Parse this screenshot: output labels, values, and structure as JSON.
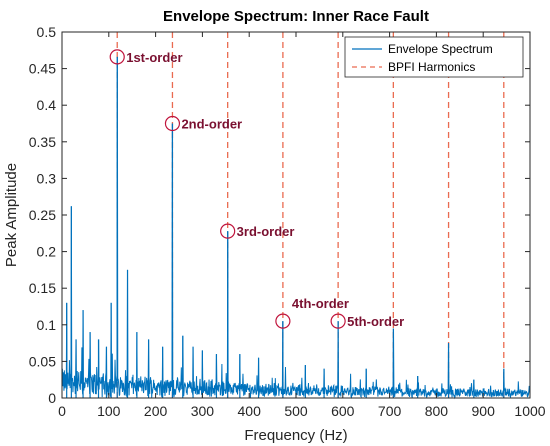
{
  "chart_data": {
    "type": "line",
    "title": "Envelope Spectrum: Inner Race Fault",
    "xlabel": "Frequency (Hz)",
    "ylabel": "Peak Amplitude",
    "xlim": [
      0,
      1000
    ],
    "ylim": [
      0,
      0.5
    ],
    "x_ticks": [
      0,
      100,
      200,
      300,
      400,
      500,
      600,
      700,
      800,
      900,
      1000
    ],
    "x_tick_labels": [
      "0",
      "100",
      "200",
      "300",
      "400",
      "500",
      "600",
      "700",
      "800",
      "900",
      "1000"
    ],
    "y_ticks": [
      0,
      0.05,
      0.1,
      0.15,
      0.2,
      0.25,
      0.3,
      0.35,
      0.4,
      0.45,
      0.5
    ],
    "y_tick_labels": [
      "0",
      "0.05",
      "0.1",
      "0.15",
      "0.2",
      "0.25",
      "0.3",
      "0.35",
      "0.4",
      "0.45",
      "0.5"
    ],
    "grid": false,
    "legend_position": "top-right",
    "colors": {
      "spectrum": "#0072bd",
      "harmonics": "#ea6b50",
      "annotation": "#c0143c",
      "annotation_text": "#7a1030"
    },
    "series": [
      {
        "name": "Envelope Spectrum",
        "style": "solid",
        "peaks": [
          {
            "x": 20,
            "y": 0.262
          },
          {
            "x": 10,
            "y": 0.13
          },
          {
            "x": 30,
            "y": 0.08
          },
          {
            "x": 45,
            "y": 0.12
          },
          {
            "x": 60,
            "y": 0.09
          },
          {
            "x": 78,
            "y": 0.08
          },
          {
            "x": 95,
            "y": 0.07
          },
          {
            "x": 105,
            "y": 0.13
          },
          {
            "x": 118,
            "y": 0.466
          },
          {
            "x": 140,
            "y": 0.175
          },
          {
            "x": 160,
            "y": 0.09
          },
          {
            "x": 185,
            "y": 0.08
          },
          {
            "x": 215,
            "y": 0.07
          },
          {
            "x": 236,
            "y": 0.375
          },
          {
            "x": 258,
            "y": 0.085
          },
          {
            "x": 280,
            "y": 0.07
          },
          {
            "x": 300,
            "y": 0.065
          },
          {
            "x": 330,
            "y": 0.06
          },
          {
            "x": 354,
            "y": 0.228
          },
          {
            "x": 380,
            "y": 0.06
          },
          {
            "x": 420,
            "y": 0.055
          },
          {
            "x": 472,
            "y": 0.105
          },
          {
            "x": 520,
            "y": 0.045
          },
          {
            "x": 560,
            "y": 0.04
          },
          {
            "x": 590,
            "y": 0.105
          },
          {
            "x": 650,
            "y": 0.04
          },
          {
            "x": 708,
            "y": 0.095
          },
          {
            "x": 760,
            "y": 0.03
          },
          {
            "x": 826,
            "y": 0.075
          },
          {
            "x": 880,
            "y": 0.025
          },
          {
            "x": 944,
            "y": 0.04
          }
        ]
      },
      {
        "name": "BPFI Harmonics",
        "style": "dashed",
        "x": [
          118,
          236,
          354,
          472,
          590,
          708,
          826,
          944
        ]
      }
    ],
    "annotations": [
      {
        "label": "1st-order",
        "x": 118,
        "y": 0.466
      },
      {
        "label": "2nd-order",
        "x": 236,
        "y": 0.375
      },
      {
        "label": "3rd-order",
        "x": 354,
        "y": 0.228
      },
      {
        "label": "4th-order",
        "x": 472,
        "y": 0.105
      },
      {
        "label": "5th-order",
        "x": 590,
        "y": 0.105
      }
    ]
  }
}
